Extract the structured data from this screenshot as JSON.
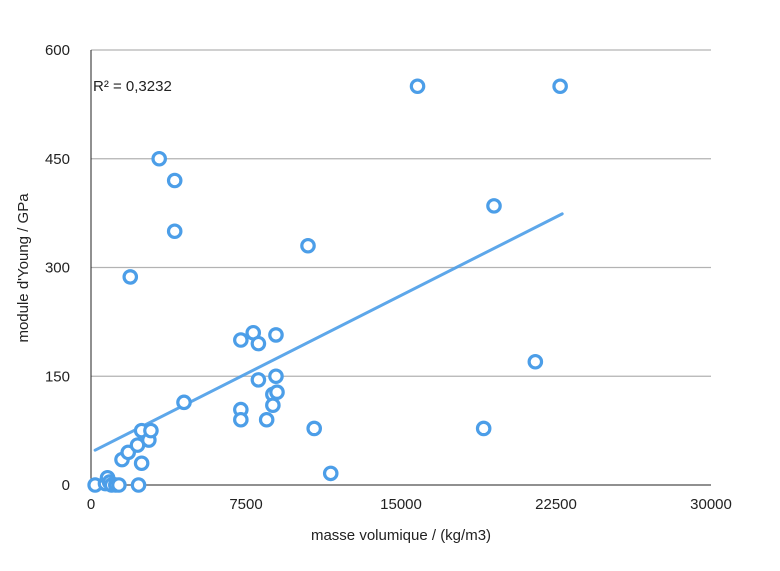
{
  "chart_data": {
    "type": "scatter",
    "xlabel": "masse volumique / (kg/m3)",
    "ylabel": "module d'Young / GPa",
    "annotation": "R² = 0,3232",
    "xlim": [
      0,
      30000
    ],
    "ylim": [
      0,
      600
    ],
    "x_ticks": [
      {
        "value": 0,
        "label": "0"
      },
      {
        "value": 7500,
        "label": "7500"
      },
      {
        "value": 15000,
        "label": "15000"
      },
      {
        "value": 22500,
        "label": "22500"
      },
      {
        "value": 30000,
        "label": "30000"
      }
    ],
    "y_ticks": [
      {
        "value": 0,
        "label": "0"
      },
      {
        "value": 150,
        "label": "150"
      },
      {
        "value": 300,
        "label": "300"
      },
      {
        "value": 450,
        "label": "450"
      },
      {
        "value": 600,
        "label": "600"
      }
    ],
    "grid": {
      "horizontal": true,
      "vertical": false
    },
    "colors": {
      "points": "#4c9ee8",
      "trendline": "#4c9ee8",
      "grid": "#b3b3b3",
      "axis": "#222222"
    },
    "series": [
      {
        "points": [
          {
            "x": 200,
            "y": 0
          },
          {
            "x": 700,
            "y": 2
          },
          {
            "x": 800,
            "y": 10
          },
          {
            "x": 900,
            "y": 4
          },
          {
            "x": 1000,
            "y": 0
          },
          {
            "x": 1200,
            "y": 0
          },
          {
            "x": 1350,
            "y": 0
          },
          {
            "x": 1500,
            "y": 35
          },
          {
            "x": 1800,
            "y": 45
          },
          {
            "x": 1900,
            "y": 287
          },
          {
            "x": 2250,
            "y": 55
          },
          {
            "x": 2300,
            "y": 0
          },
          {
            "x": 2450,
            "y": 75
          },
          {
            "x": 2450,
            "y": 30
          },
          {
            "x": 2800,
            "y": 62
          },
          {
            "x": 2900,
            "y": 75
          },
          {
            "x": 3300,
            "y": 450
          },
          {
            "x": 4050,
            "y": 420
          },
          {
            "x": 4050,
            "y": 350
          },
          {
            "x": 4500,
            "y": 114
          },
          {
            "x": 7250,
            "y": 200
          },
          {
            "x": 7250,
            "y": 104
          },
          {
            "x": 7250,
            "y": 90
          },
          {
            "x": 7850,
            "y": 210
          },
          {
            "x": 8100,
            "y": 195
          },
          {
            "x": 8100,
            "y": 145
          },
          {
            "x": 8500,
            "y": 90
          },
          {
            "x": 8800,
            "y": 125
          },
          {
            "x": 8800,
            "y": 110
          },
          {
            "x": 8950,
            "y": 207
          },
          {
            "x": 8950,
            "y": 150
          },
          {
            "x": 9000,
            "y": 128
          },
          {
            "x": 10500,
            "y": 330
          },
          {
            "x": 10800,
            "y": 78
          },
          {
            "x": 11600,
            "y": 16
          },
          {
            "x": 15800,
            "y": 550
          },
          {
            "x": 19000,
            "y": 78
          },
          {
            "x": 19500,
            "y": 385
          },
          {
            "x": 21500,
            "y": 170
          },
          {
            "x": 22700,
            "y": 550
          }
        ]
      }
    ],
    "trendline": {
      "x": [
        200,
        22800
      ],
      "y": [
        48,
        374
      ]
    }
  }
}
